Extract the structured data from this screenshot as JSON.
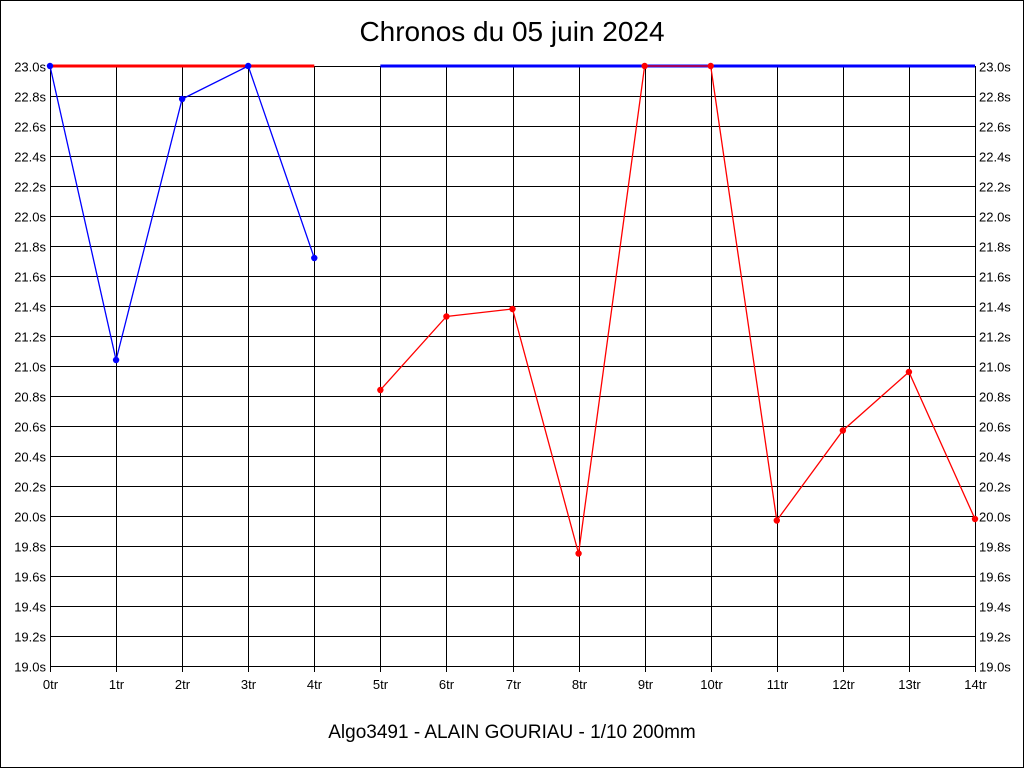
{
  "chart_data": {
    "type": "line",
    "title": "Chronos du 05 juin 2024",
    "footer": "Algo3491 - ALAIN GOURIAU - 1/10 200mm",
    "categories": [
      "0tr",
      "1tr",
      "2tr",
      "3tr",
      "4tr",
      "5tr",
      "6tr",
      "7tr",
      "8tr",
      "9tr",
      "10tr",
      "11tr",
      "12tr",
      "13tr",
      "14tr"
    ],
    "y_tick_labels": [
      "19.0s",
      "19.2s",
      "19.4s",
      "19.6s",
      "19.8s",
      "20.0s",
      "20.2s",
      "20.4s",
      "20.6s",
      "20.8s",
      "21.0s",
      "21.2s",
      "21.4s",
      "21.6s",
      "21.8s",
      "22.0s",
      "22.2s",
      "22.4s",
      "22.6s",
      "22.8s",
      "23.0s"
    ],
    "ylim": [
      19.0,
      23.0
    ],
    "y_step": 0.2,
    "grid": true,
    "series": [
      {
        "color": "#0000ff",
        "points": [
          {
            "x": 0,
            "y": 23.0
          },
          {
            "x": 1,
            "y": 21.04
          },
          {
            "x": 2,
            "y": 22.78
          },
          {
            "x": 3,
            "y": 23.0
          },
          {
            "x": 4,
            "y": 21.72
          }
        ]
      },
      {
        "color": "#ff0000",
        "points": [
          {
            "x": 5,
            "y": 20.84
          },
          {
            "x": 6,
            "y": 21.33
          },
          {
            "x": 7,
            "y": 21.38
          },
          {
            "x": 8,
            "y": 19.75
          },
          {
            "x": 9,
            "y": 23.0
          },
          {
            "x": 10,
            "y": 23.0
          },
          {
            "x": 11,
            "y": 19.97
          },
          {
            "x": 12,
            "y": 20.57
          },
          {
            "x": 13,
            "y": 20.96
          },
          {
            "x": 14,
            "y": 19.98
          }
        ]
      }
    ],
    "top_bars": [
      {
        "color": "#ff0000",
        "x_from": 0,
        "x_to": 4,
        "y": 23.0
      },
      {
        "color": "#0000ff",
        "x_from": 5,
        "x_to": 14,
        "y": 23.0
      }
    ]
  }
}
